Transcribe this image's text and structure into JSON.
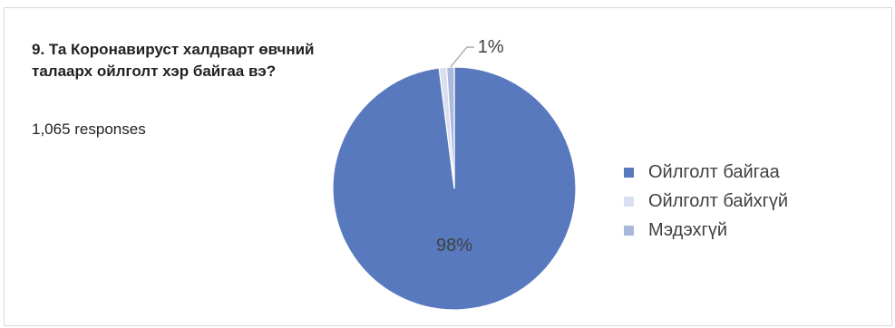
{
  "question": {
    "title": "9. Та Коронавируст халдварт өвчний талаарх ойлголт хэр байгаа вэ?",
    "responses": "1,065 responses"
  },
  "chart_data": {
    "type": "pie",
    "categories": [
      "Ойлголт байгаа",
      "Ойлголт байхгүй",
      "Мэдэхгүй"
    ],
    "values": [
      98,
      1,
      1
    ],
    "data_labels": [
      "98%",
      "",
      "1%"
    ],
    "colors": [
      "#5879be",
      "#d9dff0",
      "#aab8dc"
    ],
    "legend_position": "right",
    "start_angle_deg": 0,
    "direction": "clockwise-from-top"
  }
}
